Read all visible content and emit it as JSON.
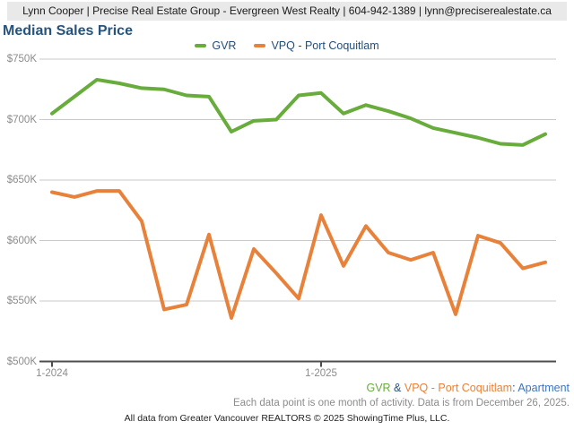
{
  "header": {
    "text": "Lynn Cooper | Precise Real Estate Group - Evergreen West Realty | 604-942-1389 | lynn@preciserealestate.ca"
  },
  "title": "Median Sales Price",
  "legend": [
    {
      "label": "GVR",
      "color": "#68AC3C"
    },
    {
      "label": "VPQ - Port Coquitlam",
      "color": "#E8823B"
    }
  ],
  "chart_data": {
    "type": "line",
    "title": "Median Sales Price",
    "units": "CAD thousands ($K)",
    "x": [
      "1-2024",
      "2-2024",
      "3-2024",
      "4-2024",
      "5-2024",
      "6-2024",
      "7-2024",
      "8-2024",
      "9-2024",
      "10-2024",
      "11-2024",
      "12-2024",
      "1-2025",
      "2-2025",
      "3-2025",
      "4-2025",
      "5-2025",
      "6-2025",
      "7-2025",
      "8-2025",
      "9-2025",
      "10-2025",
      "11-2025"
    ],
    "series": [
      {
        "name": "GVR",
        "color": "#68AC3C",
        "values": [
          705,
          719,
          733,
          730,
          726,
          725,
          720,
          719,
          690,
          699,
          700,
          720,
          722,
          705,
          712,
          707,
          701,
          693,
          689,
          685,
          680,
          679,
          688
        ]
      },
      {
        "name": "VPQ - Port Coquitlam",
        "color": "#E8823B",
        "values": [
          640,
          636,
          641,
          641,
          616,
          543,
          547,
          605,
          536,
          593,
          573,
          552,
          621,
          579,
          612,
          590,
          584,
          590,
          539,
          604,
          598,
          577,
          582
        ]
      }
    ],
    "ylim": [
      500,
      750
    ],
    "y_ticks": [
      {
        "value": 750,
        "label": "$750K"
      },
      {
        "value": 700,
        "label": "$700K"
      },
      {
        "value": 650,
        "label": "$650K"
      },
      {
        "value": 600,
        "label": "$600K"
      },
      {
        "value": 550,
        "label": "$550K"
      },
      {
        "value": 500,
        "label": "$500K"
      }
    ],
    "x_ticks": [
      {
        "index": 0,
        "label": "1-2024"
      },
      {
        "index": 12,
        "label": "1-2025"
      }
    ],
    "grid": "horizontal",
    "legend_position": "top-center"
  },
  "footer": {
    "series_line": {
      "gvr": "GVR",
      "amp": " & ",
      "vpq": "VPQ - Port Coquitlam",
      "colon": ": ",
      "property_type": "Apartment"
    },
    "note": "Each data point is one month of activity. Data is from December 26, 2025.",
    "attribution": "All data from Greater Vancouver REALTORS © 2025 ShowingTime Plus, LLC."
  },
  "colors": {
    "title_blue": "#26547C",
    "legend_text": "#254E77",
    "link_blue": "#3F74B8",
    "gridline": "#C9C9C9",
    "axis": "#4D4D4D",
    "axis_label": "#8C8C8C",
    "header_bg": "#E9E9E9"
  }
}
